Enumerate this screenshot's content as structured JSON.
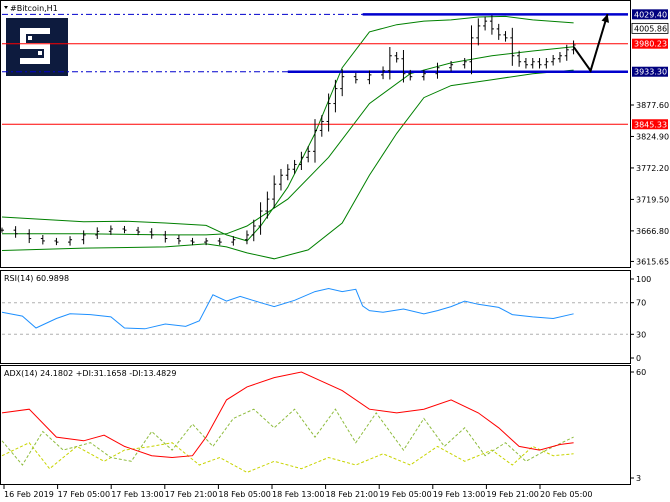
{
  "chart_data": {
    "type": "candlestick",
    "title": "#Bitcoin,H1",
    "price_axis": {
      "ticks": [
        "3877.60",
        "3824.90",
        "3772.20",
        "3719.50",
        "3666.80",
        "3615.65"
      ],
      "ylim": [
        3608,
        4040
      ]
    },
    "price_labels": [
      {
        "text": "4029.40",
        "value": 4029.4,
        "color": "#00007f"
      },
      {
        "text": "4005.86",
        "value": 4005.86,
        "color": "#ffffff"
      },
      {
        "text": "3980.23",
        "value": 3980.23,
        "color": "#ff0000"
      },
      {
        "text": "3933.30",
        "value": 3933.3,
        "color": "#00007f"
      },
      {
        "text": "3845.33",
        "value": 3845.33,
        "color": "#ff0000"
      }
    ],
    "levels": {
      "resistance": 4029.4,
      "resistance_red": 3980.23,
      "support": 3933.3,
      "support_red": 3845.33
    },
    "x_labels": [
      "16 Feb 2019",
      "17 Feb 05:00",
      "17 Feb 13:00",
      "17 Feb 21:00",
      "18 Feb 05:00",
      "18 Feb 13:00",
      "18 Feb 21:00",
      "19 Feb 05:00",
      "19 Feb 13:00",
      "19 Feb 21:00",
      "20 Feb 05:00"
    ],
    "price_series": [
      [
        0,
        3668
      ],
      [
        4,
        3662
      ],
      [
        8,
        3654
      ],
      [
        12,
        3650
      ],
      [
        16,
        3648
      ],
      [
        20,
        3652
      ],
      [
        24,
        3660
      ],
      [
        28,
        3666
      ],
      [
        32,
        3670
      ],
      [
        36,
        3668
      ],
      [
        40,
        3665
      ],
      [
        44,
        3660
      ],
      [
        48,
        3654
      ],
      [
        52,
        3650
      ],
      [
        56,
        3648
      ],
      [
        60,
        3650
      ],
      [
        64,
        3648
      ],
      [
        68,
        3652
      ],
      [
        72,
        3660
      ],
      [
        74,
        3675
      ],
      [
        76,
        3700
      ],
      [
        78,
        3720
      ],
      [
        80,
        3745
      ],
      [
        82,
        3760
      ],
      [
        84,
        3770
      ],
      [
        86,
        3778
      ],
      [
        88,
        3790
      ],
      [
        90,
        3800
      ],
      [
        92,
        3835
      ],
      [
        94,
        3850
      ],
      [
        96,
        3880
      ],
      [
        98,
        3905
      ],
      [
        100,
        3925
      ],
      [
        104,
        3920
      ],
      [
        108,
        3928
      ],
      [
        112,
        3935
      ],
      [
        114,
        3960
      ],
      [
        116,
        3955
      ],
      [
        118,
        3930
      ],
      [
        120,
        3925
      ],
      [
        124,
        3930
      ],
      [
        128,
        3940
      ],
      [
        132,
        3945
      ],
      [
        136,
        3950
      ],
      [
        138,
        3990
      ],
      [
        140,
        4010
      ],
      [
        142,
        4018
      ],
      [
        144,
        4005
      ],
      [
        146,
        3995
      ],
      [
        148,
        3990
      ],
      [
        150,
        3960
      ],
      [
        152,
        3950
      ],
      [
        154,
        3945
      ],
      [
        156,
        3950
      ],
      [
        158,
        3945
      ],
      [
        160,
        3950
      ],
      [
        162,
        3955
      ],
      [
        164,
        3960
      ],
      [
        166,
        3970
      ],
      [
        168,
        3978
      ]
    ],
    "bands": {
      "upper": [
        [
          0,
          3690
        ],
        [
          12,
          3686
        ],
        [
          24,
          3682
        ],
        [
          36,
          3683
        ],
        [
          48,
          3680
        ],
        [
          60,
          3676
        ],
        [
          66,
          3660
        ],
        [
          72,
          3650
        ],
        [
          76,
          3675
        ],
        [
          84,
          3740
        ],
        [
          92,
          3830
        ],
        [
          100,
          3940
        ],
        [
          108,
          4000
        ],
        [
          116,
          4012
        ],
        [
          124,
          4018
        ],
        [
          132,
          4020
        ],
        [
          140,
          4025
        ],
        [
          148,
          4026
        ],
        [
          156,
          4020
        ],
        [
          168,
          4015
        ]
      ],
      "middle": [
        [
          0,
          3662
        ],
        [
          24,
          3662
        ],
        [
          48,
          3660
        ],
        [
          60,
          3660
        ],
        [
          66,
          3662
        ],
        [
          72,
          3675
        ],
        [
          84,
          3720
        ],
        [
          96,
          3790
        ],
        [
          108,
          3880
        ],
        [
          120,
          3930
        ],
        [
          132,
          3948
        ],
        [
          144,
          3960
        ],
        [
          156,
          3968
        ],
        [
          168,
          3975
        ]
      ],
      "lower": [
        [
          0,
          3634
        ],
        [
          24,
          3638
        ],
        [
          48,
          3640
        ],
        [
          60,
          3645
        ],
        [
          66,
          3640
        ],
        [
          72,
          3630
        ],
        [
          80,
          3620
        ],
        [
          90,
          3635
        ],
        [
          100,
          3680
        ],
        [
          108,
          3760
        ],
        [
          116,
          3830
        ],
        [
          124,
          3890
        ],
        [
          132,
          3910
        ],
        [
          144,
          3920
        ],
        [
          156,
          3930
        ],
        [
          168,
          3936
        ]
      ]
    },
    "projection": [
      [
        168,
        3975
      ],
      [
        173,
        3935
      ],
      [
        178,
        4030
      ]
    ],
    "rsi": {
      "label": "RSI(14) 60.9898",
      "ticks": [
        "100",
        "70",
        "30",
        "0"
      ],
      "levels": [
        70,
        30
      ],
      "series": [
        [
          0,
          58
        ],
        [
          6,
          53
        ],
        [
          10,
          38
        ],
        [
          16,
          50
        ],
        [
          20,
          56
        ],
        [
          26,
          55
        ],
        [
          32,
          52
        ],
        [
          36,
          38
        ],
        [
          42,
          37
        ],
        [
          48,
          43
        ],
        [
          54,
          40
        ],
        [
          58,
          47
        ],
        [
          62,
          80
        ],
        [
          66,
          72
        ],
        [
          70,
          78
        ],
        [
          76,
          70
        ],
        [
          80,
          65
        ],
        [
          86,
          73
        ],
        [
          92,
          84
        ],
        [
          96,
          88
        ],
        [
          100,
          84
        ],
        [
          104,
          87
        ],
        [
          106,
          66
        ],
        [
          108,
          60
        ],
        [
          112,
          58
        ],
        [
          118,
          62
        ],
        [
          124,
          56
        ],
        [
          128,
          60
        ],
        [
          132,
          65
        ],
        [
          136,
          72
        ],
        [
          140,
          68
        ],
        [
          146,
          64
        ],
        [
          150,
          55
        ],
        [
          156,
          52
        ],
        [
          162,
          50
        ],
        [
          168,
          56
        ]
      ]
    },
    "adx": {
      "label": "ADX(14) 24.1802 +DI:31.1658 -DI:13.4829",
      "ticks": [
        "60",
        "3"
      ],
      "adx_series": [
        [
          0,
          38
        ],
        [
          8,
          40
        ],
        [
          16,
          25
        ],
        [
          24,
          23
        ],
        [
          30,
          26
        ],
        [
          36,
          20
        ],
        [
          44,
          15
        ],
        [
          50,
          14
        ],
        [
          56,
          15
        ],
        [
          60,
          25
        ],
        [
          66,
          45
        ],
        [
          72,
          52
        ],
        [
          80,
          57
        ],
        [
          88,
          60
        ],
        [
          94,
          55
        ],
        [
          100,
          50
        ],
        [
          108,
          40
        ],
        [
          116,
          38
        ],
        [
          124,
          40
        ],
        [
          132,
          45
        ],
        [
          140,
          38
        ],
        [
          146,
          30
        ],
        [
          152,
          20
        ],
        [
          158,
          18
        ],
        [
          164,
          21
        ],
        [
          168,
          22
        ]
      ],
      "plus_di": [
        [
          0,
          23
        ],
        [
          6,
          10
        ],
        [
          12,
          28
        ],
        [
          18,
          18
        ],
        [
          26,
          22
        ],
        [
          32,
          14
        ],
        [
          38,
          12
        ],
        [
          44,
          28
        ],
        [
          50,
          18
        ],
        [
          56,
          32
        ],
        [
          62,
          20
        ],
        [
          68,
          35
        ],
        [
          74,
          40
        ],
        [
          80,
          30
        ],
        [
          86,
          40
        ],
        [
          92,
          25
        ],
        [
          98,
          40
        ],
        [
          104,
          22
        ],
        [
          110,
          38
        ],
        [
          118,
          18
        ],
        [
          124,
          35
        ],
        [
          130,
          20
        ],
        [
          136,
          30
        ],
        [
          142,
          15
        ],
        [
          148,
          22
        ],
        [
          154,
          12
        ],
        [
          160,
          18
        ],
        [
          168,
          25
        ]
      ],
      "minus_di": [
        [
          0,
          15
        ],
        [
          8,
          22
        ],
        [
          14,
          8
        ],
        [
          22,
          20
        ],
        [
          30,
          12
        ],
        [
          36,
          18
        ],
        [
          44,
          20
        ],
        [
          50,
          22
        ],
        [
          58,
          10
        ],
        [
          64,
          14
        ],
        [
          72,
          6
        ],
        [
          80,
          12
        ],
        [
          88,
          8
        ],
        [
          96,
          14
        ],
        [
          104,
          10
        ],
        [
          112,
          16
        ],
        [
          120,
          10
        ],
        [
          128,
          20
        ],
        [
          136,
          12
        ],
        [
          144,
          18
        ],
        [
          150,
          10
        ],
        [
          156,
          20
        ],
        [
          162,
          15
        ],
        [
          168,
          16
        ]
      ]
    },
    "colors": {
      "candle": "#000000",
      "band": "#008000",
      "rsi": "#1e90ff",
      "adx": "#ff0000",
      "plus_di": "#8fbc3f",
      "minus_di": "#c8d400",
      "level_blue": "#0000cd",
      "level_red": "#ff0000",
      "label_blue": "#00007f"
    }
  }
}
